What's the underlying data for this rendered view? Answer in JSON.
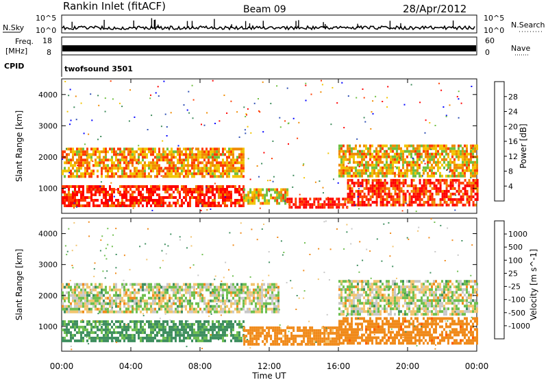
{
  "header": {
    "station": "Rankin Inlet (fitACF)",
    "beam": "Beam 09",
    "date": "28/Apr/2012"
  },
  "top_panels": {
    "nsky_label": "N.Sky",
    "nsky_ticks": [
      "10^5",
      "10^0"
    ],
    "nsearch_label": "N.Search",
    "freq_label_line1": "Freq.",
    "freq_label_line2": "[MHz]",
    "freq_ticks": [
      "18",
      "8"
    ],
    "nave_ticks": [
      "60",
      "0"
    ],
    "nave_label": "Nave",
    "cpid_label": "CPID",
    "cpid_value": "twofsound 3501"
  },
  "chart_data": [
    {
      "type": "heatmap",
      "title": "",
      "xlabel": "",
      "ylabel": "Slant Range [km]",
      "x_ticks": [
        "00:00",
        "04:00",
        "08:00",
        "12:00",
        "16:00",
        "20:00",
        "00:00"
      ],
      "y_ticks": [
        "1000",
        "2000",
        "3000",
        "4000"
      ],
      "ylim": [
        200,
        4500
      ],
      "colorbar": {
        "label": "Power [dB]",
        "ticks": [
          "4",
          "8",
          "12",
          "16",
          "20",
          "24",
          "28"
        ],
        "range": [
          0,
          30
        ],
        "colors": [
          "#0000ff",
          "#2f4fb4",
          "#3c8a5a",
          "#6fbf3f",
          "#f2c400",
          "#f08a00",
          "#ff3c00",
          "#ff0000"
        ]
      },
      "bands": [
        {
          "time_start_h": 0.0,
          "time_end_h": 10.5,
          "range_km": [
            450,
            1100
          ],
          "power_db": 27
        },
        {
          "time_start_h": 0.0,
          "time_end_h": 10.5,
          "range_km": [
            1400,
            2300
          ],
          "power_db": 20
        },
        {
          "time_start_h": 10.5,
          "time_end_h": 13.0,
          "range_km": [
            500,
            1000
          ],
          "power_db": 18
        },
        {
          "time_start_h": 13.0,
          "time_end_h": 16.5,
          "range_km": [
            350,
            700
          ],
          "power_db": 28
        },
        {
          "time_start_h": 16.5,
          "time_end_h": 24.0,
          "range_km": [
            500,
            1300
          ],
          "power_db": 26
        },
        {
          "time_start_h": 16.0,
          "time_end_h": 24.0,
          "range_km": [
            1400,
            2400
          ],
          "power_db": 18
        }
      ]
    },
    {
      "type": "heatmap",
      "title": "",
      "xlabel": "Time UT",
      "ylabel": "Slant Range [km]",
      "x_ticks": [
        "00:00",
        "04:00",
        "08:00",
        "12:00",
        "16:00",
        "20:00",
        "00:00"
      ],
      "y_ticks": [
        "1000",
        "2000",
        "3000",
        "4000"
      ],
      "ylim": [
        200,
        4500
      ],
      "colorbar": {
        "label": "Velocity [m s^-1]",
        "ticks": [
          "1000",
          "500",
          "100",
          "25",
          "-25",
          "-100",
          "-500",
          "-1000"
        ],
        "colors": [
          "#1f3fbf",
          "#2f6fbf",
          "#3f8f5f",
          "#6fbf4f",
          "#c8c8c8",
          "#f2c46f",
          "#f08a1a",
          "#ff5a00",
          "#ff0000"
        ]
      },
      "bands": [
        {
          "time_start_h": 0.0,
          "time_end_h": 10.5,
          "range_km": [
            500,
            1200
          ],
          "velocity": 150
        },
        {
          "time_start_h": 0.0,
          "time_end_h": 12.5,
          "range_km": [
            1500,
            2400
          ],
          "velocity": 0
        },
        {
          "time_start_h": 10.5,
          "time_end_h": 16.0,
          "range_km": [
            400,
            1000
          ],
          "velocity": -200
        },
        {
          "time_start_h": 16.0,
          "time_end_h": 24.0,
          "range_km": [
            500,
            1300
          ],
          "velocity": -400
        },
        {
          "time_start_h": 16.0,
          "time_end_h": 24.0,
          "range_km": [
            1400,
            2500
          ],
          "velocity": 0
        }
      ]
    }
  ],
  "colors": {
    "axis": "#000000",
    "background": "#ffffff"
  }
}
